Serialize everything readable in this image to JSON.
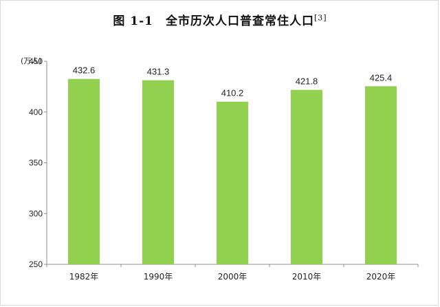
{
  "chart_data": {
    "type": "bar",
    "title": "图 1-1　全市历次人口普查常住人口",
    "title_note": "[3]",
    "ylabel": "(万人)",
    "categories": [
      "1982年",
      "1990年",
      "2000年",
      "2010年",
      "2020年"
    ],
    "values": [
      432.6,
      431.3,
      410.2,
      421.8,
      425.4
    ],
    "value_labels": [
      "432.6",
      "431.3",
      "410.2",
      "421.8",
      "425.4"
    ],
    "ylim": [
      250,
      450
    ],
    "yticks": [
      "250",
      "300",
      "350",
      "400",
      "450"
    ],
    "bar_color": "#92d050",
    "grid": false,
    "legend": "none"
  }
}
